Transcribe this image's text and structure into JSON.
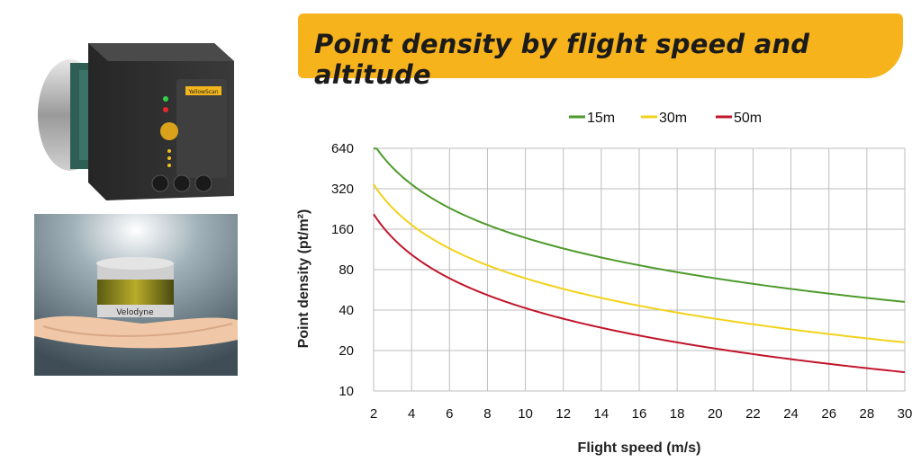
{
  "title": "Point density by flight speed and altitude",
  "product_labels": {
    "scanner_label": "YellowScan",
    "lidar_label": "Velodyne"
  },
  "colors": {
    "banner": "#f7b31c",
    "series": [
      "#4e9a2c",
      "#f2d21b",
      "#c0152a"
    ]
  },
  "chart_data": {
    "type": "line",
    "title": "",
    "xlabel": "Flight speed (m/s)",
    "ylabel": "Point density (pt/m²)",
    "xlim": [
      2,
      30
    ],
    "ylim": [
      10,
      640
    ],
    "yscale": "log2",
    "x_ticks": [
      2,
      4,
      6,
      8,
      10,
      12,
      14,
      16,
      18,
      20,
      22,
      24,
      26,
      28,
      30
    ],
    "y_ticks": [
      10,
      20,
      40,
      80,
      160,
      320,
      640
    ],
    "grid": true,
    "legend_position": "top",
    "x": [
      2,
      4,
      6,
      8,
      10,
      12,
      14,
      16,
      18,
      20,
      22,
      24,
      26,
      28,
      30
    ],
    "series": [
      {
        "name": "15m",
        "values": [
          690,
          345,
          230,
          173,
          138,
          115,
          99,
          86,
          77,
          69,
          63,
          58,
          53,
          49,
          46
        ]
      },
      {
        "name": "30m",
        "values": [
          345,
          173,
          115,
          86,
          69,
          58,
          49,
          43,
          38,
          35,
          31,
          29,
          27,
          25,
          23
        ]
      },
      {
        "name": "50m",
        "values": [
          207,
          104,
          69,
          52,
          41,
          35,
          30,
          26,
          23,
          21,
          19,
          17,
          16,
          15,
          14
        ]
      }
    ]
  }
}
